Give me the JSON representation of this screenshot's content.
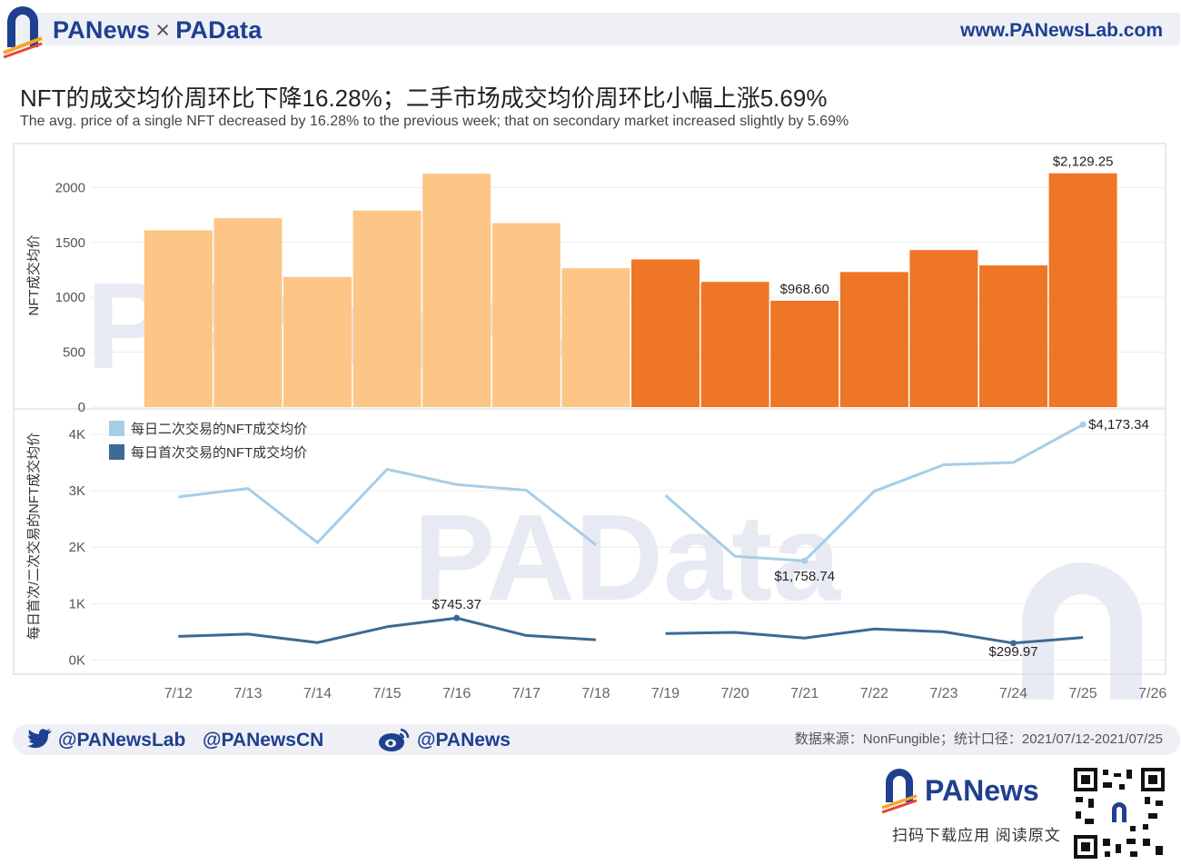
{
  "header": {
    "brand_left": "PANews",
    "brand_sep": "×",
    "brand_right": "PAData",
    "website": "www.PANewsLab.com"
  },
  "title": "NFT的成交均价周环比下降16.28%；二手市场成交均价周环比小幅上涨5.69%",
  "subtitle": "The avg. price of a single NFT decreased by 16.28% to the previous week; that on secondary market increased slightly by 5.69%",
  "colors": {
    "bar_prev_week": "#fdc586",
    "bar_this_week": "#ee7626",
    "secondary_line": "#a7cde6",
    "primary_line": "#3c6a95",
    "brand": "#1f3f8f"
  },
  "chart_data": [
    {
      "type": "bar",
      "ylabel": "NFT成交均价",
      "yticks": [
        0,
        500,
        1000,
        1500,
        2000
      ],
      "ylim": [
        0,
        2400
      ],
      "categories": [
        "7/12",
        "7/13",
        "7/14",
        "7/15",
        "7/16",
        "7/17",
        "7/18",
        "7/19",
        "7/20",
        "7/21",
        "7/22",
        "7/23",
        "7/24",
        "7/25"
      ],
      "values": [
        1610,
        1720,
        1185,
        1790,
        2125,
        1675,
        1265,
        1345,
        1140,
        968.6,
        1230,
        1430,
        1290,
        2129.25
      ],
      "color_groups": [
        "prev",
        "prev",
        "prev",
        "prev",
        "prev",
        "prev",
        "prev",
        "this",
        "this",
        "this",
        "this",
        "this",
        "this",
        "this"
      ],
      "data_labels": {
        "9": "$968.60",
        "13": "$2,129.25"
      }
    },
    {
      "type": "line",
      "ylabel": "每日首次/二次交易的NFT成交均价",
      "ytick_labels": [
        "0K",
        "1K",
        "2K",
        "3K",
        "4K"
      ],
      "ylim": [
        -250,
        4450
      ],
      "x": [
        "7/12",
        "7/13",
        "7/14",
        "7/15",
        "7/16",
        "7/17",
        "7/18",
        "7/19",
        "7/20",
        "7/21",
        "7/22",
        "7/23",
        "7/24",
        "7/25",
        "7/26"
      ],
      "series": [
        {
          "name": "每日二次交易的NFT成交均价",
          "segments": [
            {
              "start": 0,
              "values": [
                2890,
                3040,
                2080,
                3380,
                3110,
                3010,
                2040
              ]
            },
            {
              "start": 7,
              "values": [
                2920,
                1840,
                1758.74,
                2990,
                3460,
                3500,
                4173.34
              ]
            }
          ],
          "labels": {
            "9": "$1,758.74",
            "13": "$4,173.34"
          }
        },
        {
          "name": "每日首次交易的NFT成交均价",
          "segments": [
            {
              "start": 0,
              "values": [
                420,
                460,
                310,
                590,
                745.37,
                435,
                360
              ]
            },
            {
              "start": 7,
              "values": [
                470,
                490,
                390,
                550,
                500,
                299.97,
                400
              ]
            }
          ],
          "labels": {
            "4": "$745.37",
            "12": "$299.97"
          }
        }
      ]
    }
  ],
  "footer": {
    "twitter": [
      "@PANewsLab",
      "@PANewsCN"
    ],
    "weibo": "@PANews",
    "source": "数据来源：NonFungible；统计口径：2021/07/12-2021/07/25",
    "app_slogan": "扫码下载应用  阅读原文",
    "logo_text": "PANews"
  }
}
